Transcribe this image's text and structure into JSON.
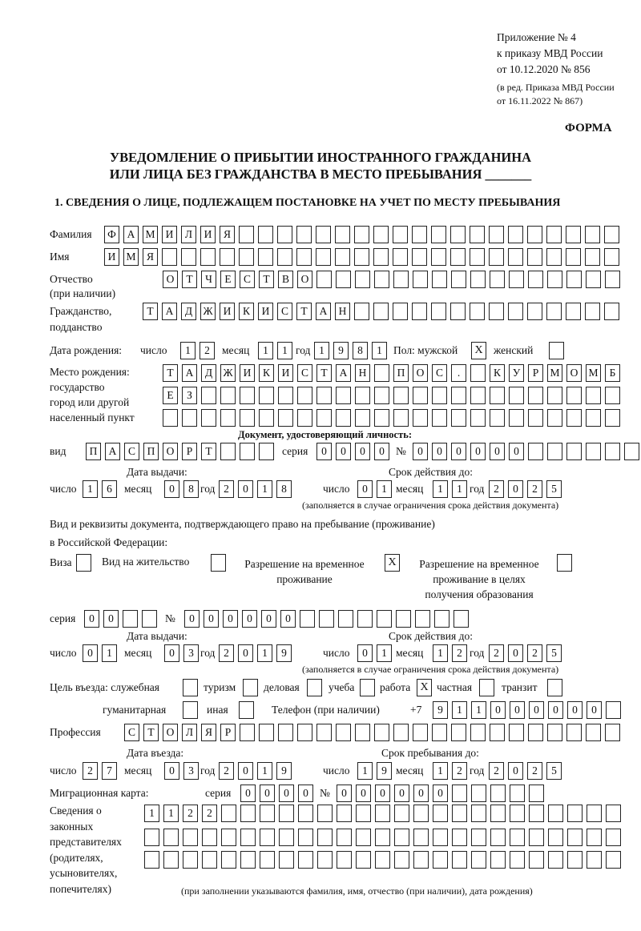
{
  "header": {
    "appendix": "Приложение № 4",
    "order": "к приказу МВД России",
    "order_date": "от 10.12.2020 № 856",
    "revision1": "(в ред. Приказа МВД России",
    "revision2": "от 16.11.2022 № 867)",
    "form_label": "ФОРМА",
    "title1": "УВЕДОМЛЕНИЕ О ПРИБЫТИИ ИНОСТРАННОГО ГРАЖДАНИНА",
    "title2": "ИЛИ ЛИЦА БЕЗ ГРАЖДАНСТВА В МЕСТО ПРЕБЫВАНИЯ _______"
  },
  "section1": {
    "heading": "1. СВЕДЕНИЯ О ЛИЦЕ, ПОДЛЕЖАЩЕМ ПОСТАНОВКЕ НА УЧЕТ ПО МЕСТУ ПРЕБЫВАНИЯ",
    "surname": {
      "label": "Фамилия",
      "cells": [
        "Ф",
        "А",
        "М",
        "И",
        "Л",
        "И",
        "Я",
        "",
        "",
        "",
        "",
        "",
        "",
        "",
        "",
        "",
        "",
        "",
        "",
        "",
        "",
        "",
        "",
        "",
        "",
        "",
        ""
      ]
    },
    "name": {
      "label": "Имя",
      "cells": [
        "И",
        "М",
        "Я",
        "",
        "",
        "",
        "",
        "",
        "",
        "",
        "",
        "",
        "",
        "",
        "",
        "",
        "",
        "",
        "",
        "",
        "",
        "",
        "",
        "",
        "",
        "",
        ""
      ]
    },
    "patronymic": {
      "label1": "Отчество",
      "label2": "(при наличии)",
      "cells": [
        "О",
        "Т",
        "Ч",
        "Е",
        "С",
        "Т",
        "В",
        "О",
        "",
        "",
        "",
        "",
        "",
        "",
        "",
        "",
        "",
        "",
        "",
        "",
        "",
        "",
        "",
        ""
      ]
    },
    "citizenship": {
      "label1": "Гражданство,",
      "label2": "подданство",
      "cells": [
        "Т",
        "А",
        "Д",
        "Ж",
        "И",
        "К",
        "И",
        "С",
        "Т",
        "А",
        "Н",
        "",
        "",
        "",
        "",
        "",
        "",
        "",
        "",
        "",
        "",
        "",
        "",
        "",
        ""
      ]
    },
    "birth": {
      "label": "Дата рождения:",
      "day_label": "число",
      "month_label": "месяц",
      "year_label": "год",
      "day": [
        "1",
        "2"
      ],
      "month": [
        "1",
        "1"
      ],
      "year": [
        "1",
        "9",
        "8",
        "1"
      ],
      "sex_label": "Пол: мужской",
      "male": "X",
      "female_label": "женский",
      "female": ""
    },
    "birthplace": {
      "label1": "Место рождения:",
      "label2": "государство",
      "label3": "город или другой",
      "label4": "населенный пункт",
      "row1": [
        "Т",
        "А",
        "Д",
        "Ж",
        "И",
        "К",
        "И",
        "С",
        "Т",
        "А",
        "Н",
        "",
        "П",
        "О",
        "С",
        ".",
        "",
        "К",
        "У",
        "Р",
        "М",
        "О",
        "М",
        "Б"
      ],
      "row2": [
        "Е",
        "З",
        "",
        "",
        "",
        "",
        "",
        "",
        "",
        "",
        "",
        "",
        "",
        "",
        "",
        "",
        "",
        "",
        "",
        "",
        "",
        "",
        "",
        ""
      ],
      "row3": [
        "",
        "",
        "",
        "",
        "",
        "",
        "",
        "",
        "",
        "",
        "",
        "",
        "",
        "",
        "",
        "",
        "",
        "",
        "",
        "",
        "",
        "",
        "",
        ""
      ]
    },
    "id_doc": {
      "heading": "Документ, удостоверяющий личность:",
      "type_label": "вид",
      "type": [
        "П",
        "А",
        "С",
        "П",
        "О",
        "Р",
        "Т",
        "",
        "",
        ""
      ],
      "series_label": "серия",
      "series": [
        "0",
        "0",
        "0",
        "0"
      ],
      "number_label": "№",
      "number": [
        "0",
        "0",
        "0",
        "0",
        "0",
        "0",
        "",
        "",
        "",
        "",
        "",
        ""
      ],
      "issue_label": "Дата выдачи:",
      "expiry_label": "Срок действия до:",
      "day_label": "число",
      "month_label": "месяц",
      "year_label": "год",
      "issue_day": [
        "1",
        "6"
      ],
      "issue_month": [
        "0",
        "8"
      ],
      "issue_year": [
        "2",
        "0",
        "1",
        "8"
      ],
      "exp_day": [
        "0",
        "1"
      ],
      "exp_month": [
        "1",
        "1"
      ],
      "exp_year": [
        "2",
        "0",
        "2",
        "5"
      ],
      "note": "(заполняется в случае ограничения срока действия документа)"
    },
    "stay_doc": {
      "intro1": "Вид и реквизиты документа, подтверждающего право на пребывание (проживание)",
      "intro2": "в Российской Федерации:",
      "visa_label": "Виза",
      "visa": "",
      "residence_label": "Вид на жительство",
      "residence": "",
      "trp_label1": "Разрешение на временное",
      "trp_label2": "проживание",
      "trp": "X",
      "trp_edu_label1": "Разрешение на временное",
      "trp_edu_label2": "проживание в целях",
      "trp_edu_label3": "получения образования",
      "trp_edu": "",
      "series_label": "серия",
      "series": [
        "0",
        "0",
        "",
        ""
      ],
      "number_label": "№",
      "number": [
        "0",
        "0",
        "0",
        "0",
        "0",
        "0",
        "",
        "",
        "",
        "",
        "",
        "",
        "",
        "",
        ""
      ],
      "issue_label": "Дата выдачи:",
      "expiry_label": "Срок действия до:",
      "day_label": "число",
      "month_label": "месяц",
      "year_label": "год",
      "issue_day": [
        "0",
        "1"
      ],
      "issue_month": [
        "0",
        "3"
      ],
      "issue_year": [
        "2",
        "0",
        "1",
        "9"
      ],
      "exp_day": [
        "0",
        "1"
      ],
      "exp_month": [
        "1",
        "2"
      ],
      "exp_year": [
        "2",
        "0",
        "2",
        "5"
      ],
      "note": "(заполняется в случае ограничения срока действия документа)"
    },
    "purpose": {
      "label": "Цель въезда: служебная",
      "official": "",
      "tourism_label": "туризм",
      "tourism": "",
      "business_label": "деловая",
      "business": "",
      "study_label": "учеба",
      "study": "",
      "work_label": "работа",
      "work": "X",
      "private_label": "частная",
      "private": "",
      "transit_label": "транзит",
      "transit": "",
      "humanitarian_label": "гуманитарная",
      "humanitarian": "",
      "other_label": "иная",
      "other": ""
    },
    "phone": {
      "label": "Телефон (при наличии)",
      "prefix": "+7",
      "cells": [
        "9",
        "1",
        "1",
        "0",
        "0",
        "0",
        "0",
        "0",
        "0",
        ""
      ]
    },
    "profession": {
      "label": "Профессия",
      "cells": [
        "С",
        "Т",
        "О",
        "Л",
        "Я",
        "Р",
        "",
        "",
        "",
        "",
        "",
        "",
        "",
        "",
        "",
        "",
        "",
        "",
        "",
        "",
        "",
        "",
        "",
        "",
        "",
        ""
      ]
    },
    "entry": {
      "entry_label": "Дата въезда:",
      "stay_until_label": "Срок пребывания до:",
      "day_label": "число",
      "month_label": "месяц",
      "year_label": "год",
      "entry_day": [
        "2",
        "7"
      ],
      "entry_month": [
        "0",
        "3"
      ],
      "entry_year": [
        "2",
        "0",
        "1",
        "9"
      ],
      "until_day": [
        "1",
        "9"
      ],
      "until_month": [
        "1",
        "2"
      ],
      "until_year": [
        "2",
        "0",
        "2",
        "5"
      ]
    },
    "migration_card": {
      "label": "Миграционная карта:",
      "series_label": "серия",
      "series": [
        "0",
        "0",
        "0",
        "0"
      ],
      "number_label": "№",
      "number": [
        "0",
        "0",
        "0",
        "0",
        "0",
        "0",
        "",
        "",
        "",
        "",
        ""
      ]
    },
    "representatives": {
      "label1": "Сведения о",
      "label2": "законных",
      "label3": "представителях",
      "label4": "(родителях,",
      "label5": "усыновителях,",
      "label6": "попечителях)",
      "row1": [
        "1",
        "1",
        "2",
        "2",
        "",
        "",
        "",
        "",
        "",
        "",
        "",
        "",
        "",
        "",
        "",
        "",
        "",
        "",
        "",
        "",
        "",
        "",
        "",
        "",
        ""
      ],
      "row2": [
        "",
        "",
        "",
        "",
        "",
        "",
        "",
        "",
        "",
        "",
        "",
        "",
        "",
        "",
        "",
        "",
        "",
        "",
        "",
        "",
        "",
        "",
        "",
        "",
        ""
      ],
      "row3": [
        "",
        "",
        "",
        "",
        "",
        "",
        "",
        "",
        "",
        "",
        "",
        "",
        "",
        "",
        "",
        "",
        "",
        "",
        "",
        "",
        "",
        "",
        "",
        "",
        ""
      ],
      "note": "(при заполнении указываются фамилия, имя, отчество (при наличии), дата рождения)"
    }
  }
}
